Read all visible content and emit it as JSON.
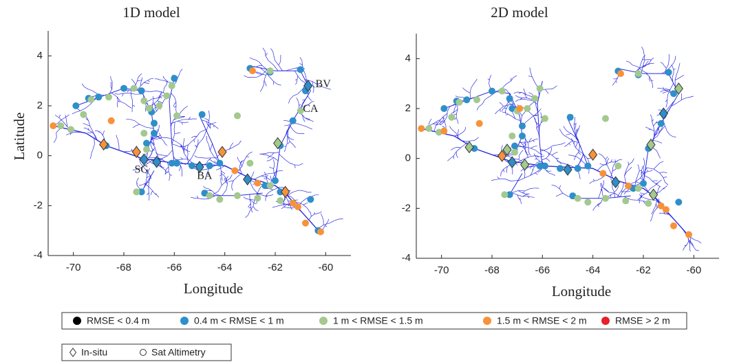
{
  "legend": {
    "entries": [
      {
        "label": "RMSE < 0.4 m",
        "color": "#000000"
      },
      {
        "label": "0.4 m < RMSE < 1 m",
        "color": "#2e8fc9"
      },
      {
        "label": "1 m < RMSE < 1.5 m",
        "color": "#a3c98f"
      },
      {
        "label": "1.5 m < RMSE < 2 m",
        "color": "#f7923a"
      },
      {
        "label": "RMSE > 2 m",
        "color": "#e8202a"
      }
    ],
    "shapes": [
      {
        "label": "In-situ",
        "shape": "diamond"
      },
      {
        "label": "Sat Altimetry",
        "shape": "circle"
      }
    ]
  },
  "chart_data": [
    {
      "type": "scatter",
      "title": "1D model",
      "xlabel": "Longitude",
      "ylabel": "Latitude",
      "xlim": [
        -71,
        -59
      ],
      "ylim": [
        -4,
        5
      ],
      "xticks": [
        -70,
        -68,
        -66,
        -64,
        -62,
        -60
      ],
      "yticks": [
        -4,
        -2,
        0,
        2,
        4
      ],
      "annotations": [
        {
          "text": "BV",
          "x": -60.1,
          "y": 2.85
        },
        {
          "text": "CA",
          "x": -60.6,
          "y": 1.85
        },
        {
          "text": "SG",
          "x": -67.3,
          "y": -0.58
        },
        {
          "text": "BA",
          "x": -64.8,
          "y": -0.83
        }
      ],
      "series": [
        {
          "color": "#2e8fc9",
          "x": [
            -69.9,
            -69.4,
            -69.0,
            -68.0,
            -67.3,
            -66.9,
            -66.8,
            -66.8,
            -67.1,
            -68.7,
            -66.0,
            -66.1,
            -65.9,
            -65.3,
            -64.6,
            -64.2,
            -64.9,
            -63.0,
            -62.2,
            -61.0,
            -60.8,
            -61.3,
            -61.8,
            -62.4,
            -62.0,
            -61.8,
            -60.6,
            -60.3,
            -64.8,
            -67.3,
            -60.7,
            -67.2,
            -66.7,
            -65.0,
            -63.1
          ],
          "y": [
            2.0,
            2.3,
            2.35,
            2.7,
            2.6,
            1.75,
            1.3,
            0.9,
            0.5,
            0.4,
            3.1,
            -0.3,
            -0.3,
            -0.4,
            -0.4,
            -0.3,
            1.65,
            3.5,
            3.35,
            3.45,
            2.6,
            1.4,
            0.4,
            -1.2,
            -1.0,
            -1.45,
            -1.75,
            -3.0,
            -1.5,
            -1.45,
            2.8,
            -0.15,
            -0.25,
            -0.45,
            -0.95
          ],
          "shapes": [
            "circle",
            "circle",
            "circle",
            "circle",
            "circle",
            "circle",
            "circle",
            "circle",
            "circle",
            "circle",
            "circle",
            "circle",
            "circle",
            "circle",
            "circle",
            "circle",
            "circle",
            "circle",
            "circle",
            "circle",
            "circle",
            "circle",
            "circle",
            "circle",
            "circle",
            "circle",
            "circle",
            "circle",
            "circle",
            "circle",
            "diamond",
            "diamond",
            "diamond",
            "diamond",
            "diamond"
          ]
        },
        {
          "color": "#a3c98f",
          "x": [
            -70.5,
            -70.1,
            -69.6,
            -69.3,
            -68.6,
            -67.6,
            -67.2,
            -67.0,
            -66.6,
            -66.3,
            -66.1,
            -65.9,
            -67.2,
            -67.1,
            -67.5,
            -63.5,
            -62.2,
            -61.0,
            -63.0,
            -62.7,
            -63.5,
            -64.2,
            -61.8,
            -62.2,
            -64.6,
            -61.9
          ],
          "y": [
            1.2,
            1.05,
            1.65,
            2.25,
            2.35,
            2.7,
            2.2,
            1.9,
            2.0,
            2.4,
            2.8,
            1.6,
            0.9,
            0.25,
            -1.45,
            1.6,
            3.4,
            1.8,
            -0.3,
            -1.7,
            -1.6,
            -1.75,
            -1.8,
            -1.2,
            -1.6,
            0.5
          ],
          "shapes": [
            "circle",
            "circle",
            "circle",
            "circle",
            "circle",
            "circle",
            "circle",
            "circle",
            "circle",
            "circle",
            "circle",
            "circle",
            "circle",
            "circle",
            "circle",
            "circle",
            "circle",
            "circle",
            "circle",
            "circle",
            "circle",
            "circle",
            "circle",
            "circle",
            "circle",
            "diamond"
          ]
        },
        {
          "color": "#f7923a",
          "x": [
            -70.8,
            -68.5,
            -62.9,
            -63.6,
            -62.7,
            -61.3,
            -61.1,
            -60.8,
            -60.2,
            -68.8,
            -67.5,
            -64.1,
            -61.6
          ],
          "y": [
            1.2,
            1.4,
            3.4,
            -0.6,
            -1.1,
            -1.9,
            -2.05,
            -2.7,
            -3.05,
            0.45,
            0.15,
            0.15,
            -1.45
          ],
          "shapes": [
            "circle",
            "circle",
            "circle",
            "circle",
            "circle",
            "circle",
            "circle",
            "circle",
            "circle",
            "diamond",
            "diamond",
            "diamond",
            "diamond"
          ]
        }
      ]
    },
    {
      "type": "scatter",
      "title": "2D model",
      "xlabel": "Longitude",
      "xlim": [
        -71,
        -59
      ],
      "ylim": [
        -4,
        5
      ],
      "xticks": [
        -70,
        -68,
        -66,
        -64,
        -62,
        -60
      ],
      "yticks": [
        -4,
        -2,
        0,
        2,
        4
      ],
      "series": [
        {
          "color": "#2e8fc9",
          "x": [
            -69.9,
            -69.4,
            -69.0,
            -68.0,
            -67.3,
            -67.2,
            -66.8,
            -66.8,
            -67.1,
            -68.7,
            -66.1,
            -65.9,
            -65.3,
            -64.6,
            -64.2,
            -64.9,
            -63.0,
            -62.2,
            -61.0,
            -60.8,
            -61.3,
            -61.8,
            -62.4,
            -62.0,
            -60.6,
            -64.8,
            -67.3,
            -61.2,
            -67.2,
            -65.0,
            -63.1
          ],
          "y": [
            2.0,
            2.3,
            2.35,
            2.7,
            2.4,
            2.0,
            1.3,
            0.9,
            0.5,
            0.4,
            -0.3,
            -0.3,
            -0.4,
            -0.4,
            -0.3,
            1.65,
            3.5,
            3.35,
            3.45,
            2.6,
            1.4,
            0.4,
            -1.2,
            -1.0,
            -1.75,
            -1.5,
            -1.45,
            1.8,
            -0.15,
            -0.45,
            -0.95
          ],
          "shapes": [
            "circle",
            "circle",
            "circle",
            "circle",
            "circle",
            "circle",
            "circle",
            "circle",
            "circle",
            "circle",
            "circle",
            "circle",
            "circle",
            "circle",
            "circle",
            "circle",
            "circle",
            "circle",
            "circle",
            "circle",
            "circle",
            "circle",
            "circle",
            "circle",
            "circle",
            "circle",
            "circle",
            "diamond",
            "diamond",
            "diamond",
            "diamond"
          ]
        },
        {
          "color": "#a3c98f",
          "x": [
            -70.5,
            -70.1,
            -69.6,
            -69.3,
            -68.6,
            -67.6,
            -67.0,
            -66.6,
            -66.3,
            -66.1,
            -65.9,
            -67.2,
            -67.1,
            -67.5,
            -63.5,
            -62.2,
            -63.0,
            -62.7,
            -63.5,
            -64.2,
            -61.8,
            -62.2,
            -64.6,
            -60.6,
            -61.7,
            -61.6,
            -67.4,
            -66.7,
            -68.9
          ],
          "y": [
            1.2,
            1.05,
            1.65,
            2.25,
            2.35,
            2.7,
            1.9,
            2.0,
            2.4,
            2.8,
            1.6,
            0.9,
            0.25,
            -1.45,
            1.6,
            3.4,
            -0.3,
            -1.7,
            -1.6,
            -1.75,
            -1.8,
            -1.2,
            -1.6,
            2.8,
            0.55,
            -1.45,
            0.35,
            -0.25,
            0.45
          ],
          "shapes": [
            "circle",
            "circle",
            "circle",
            "circle",
            "circle",
            "circle",
            "circle",
            "circle",
            "circle",
            "circle",
            "circle",
            "circle",
            "circle",
            "circle",
            "circle",
            "circle",
            "circle",
            "circle",
            "circle",
            "circle",
            "circle",
            "circle",
            "circle",
            "diamond",
            "diamond",
            "diamond",
            "diamond",
            "diamond",
            "diamond"
          ]
        },
        {
          "color": "#f7923a",
          "x": [
            -70.8,
            -69.9,
            -68.5,
            -62.9,
            -63.6,
            -62.6,
            -61.3,
            -61.1,
            -60.8,
            -60.2,
            -66.9,
            -67.6,
            -64.0
          ],
          "y": [
            1.2,
            1.1,
            1.4,
            3.4,
            -0.6,
            -1.1,
            -1.9,
            -2.05,
            -2.7,
            -3.05,
            2.0,
            0.1,
            0.15
          ],
          "shapes": [
            "circle",
            "circle",
            "circle",
            "circle",
            "circle",
            "circle",
            "circle",
            "circle",
            "circle",
            "circle",
            "circle",
            "diamond",
            "diamond"
          ]
        }
      ]
    }
  ]
}
